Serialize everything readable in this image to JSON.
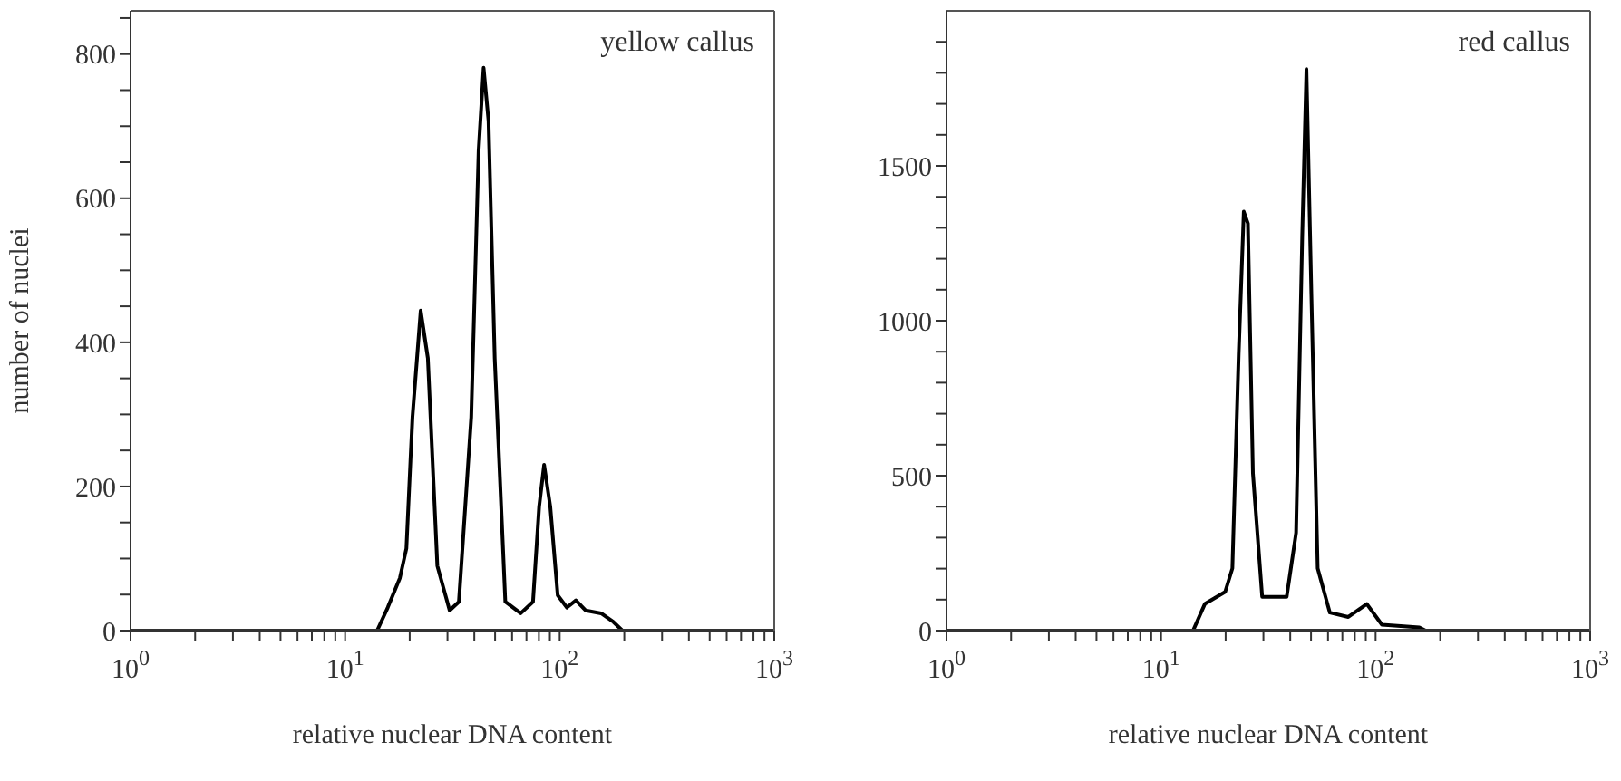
{
  "chart_data": [
    {
      "type": "line",
      "xlabel": "relative nuclear DNA content",
      "ylabel": "number of nuclei",
      "annotations": [
        "yellow callus"
      ],
      "log": "x",
      "marker": "none",
      "line_style": "solid",
      "xlim": [
        1,
        1000
      ],
      "xticks": [
        {
          "value": 1,
          "label": "10$^{0}$"
        },
        {
          "value": 2,
          "label": null
        },
        {
          "value": 3,
          "label": null
        },
        {
          "value": 4,
          "label": null
        },
        {
          "value": 5,
          "label": null
        },
        {
          "value": 6,
          "label": null
        },
        {
          "value": 7,
          "label": null
        },
        {
          "value": 8,
          "label": null
        },
        {
          "value": 9,
          "label": null
        },
        {
          "value": 10,
          "label": "10$^{1}$"
        },
        {
          "value": 20,
          "label": null
        },
        {
          "value": 30,
          "label": null
        },
        {
          "value": 40,
          "label": null
        },
        {
          "value": 50,
          "label": null
        },
        {
          "value": 60,
          "label": null
        },
        {
          "value": 70,
          "label": null
        },
        {
          "value": 80,
          "label": null
        },
        {
          "value": 90,
          "label": null
        },
        {
          "value": 100,
          "label": "10$^{2}$"
        },
        {
          "value": 200,
          "label": null
        },
        {
          "value": 300,
          "label": null
        },
        {
          "value": 400,
          "label": null
        },
        {
          "value": 500,
          "label": null
        },
        {
          "value": 600,
          "label": null
        },
        {
          "value": 700,
          "label": null
        },
        {
          "value": 800,
          "label": null
        },
        {
          "value": 900,
          "label": null
        },
        {
          "value": 1000,
          "label": "10$^{3}$"
        }
      ],
      "ylim": [
        0,
        860
      ],
      "yticks": [
        0,
        {
          "value": 50,
          "label": null
        },
        {
          "value": 100,
          "label": null
        },
        {
          "value": 150,
          "label": null
        },
        200,
        {
          "value": 250,
          "label": null
        },
        {
          "value": 300,
          "label": null
        },
        {
          "value": 350,
          "label": null
        },
        400,
        {
          "value": 450,
          "label": null
        },
        {
          "value": 500,
          "label": null
        },
        {
          "value": 550,
          "label": null
        },
        600,
        {
          "value": 650,
          "label": null
        },
        {
          "value": 700,
          "label": null
        },
        {
          "value": 750,
          "label": null
        },
        800,
        {
          "value": 850,
          "label": null
        }
      ],
      "series": [
        {
          "color": "#000000",
          "x": [
            1,
            14.1,
            15.8,
            18.0,
            19.3,
            20.6,
            22.5,
            24.3,
            26.9,
            30.7,
            33.9,
            38.7,
            41.9,
            44.2,
            46.6,
            49.8,
            55.8,
            65.8,
            75.1,
            80.2,
            84.6,
            90.4,
            97.9,
            108,
            119,
            132,
            156,
            178,
            196,
            1000
          ],
          "values": [
            0,
            0,
            32,
            73,
            114,
            296,
            444,
            378,
            90,
            28,
            40,
            296,
            666,
            781,
            707,
            378,
            40,
            24,
            40,
            172,
            230,
            172,
            49,
            32,
            42,
            28,
            24,
            12,
            0,
            0
          ]
        }
      ]
    },
    {
      "type": "line",
      "xlabel": "relative nuclear DNA content",
      "annotations": [
        "red callus"
      ],
      "log": "x",
      "marker": "none",
      "line_style": "solid",
      "xlim": [
        1,
        1000
      ],
      "xticks": [
        {
          "value": 1,
          "label": "10$^{0}$"
        },
        {
          "value": 2,
          "label": null
        },
        {
          "value": 3,
          "label": null
        },
        {
          "value": 4,
          "label": null
        },
        {
          "value": 5,
          "label": null
        },
        {
          "value": 6,
          "label": null
        },
        {
          "value": 7,
          "label": null
        },
        {
          "value": 8,
          "label": null
        },
        {
          "value": 9,
          "label": null
        },
        {
          "value": 10,
          "label": "10$^{1}$"
        },
        {
          "value": 20,
          "label": null
        },
        {
          "value": 30,
          "label": null
        },
        {
          "value": 40,
          "label": null
        },
        {
          "value": 50,
          "label": null
        },
        {
          "value": 60,
          "label": null
        },
        {
          "value": 70,
          "label": null
        },
        {
          "value": 80,
          "label": null
        },
        {
          "value": 90,
          "label": null
        },
        {
          "value": 100,
          "label": "10$^{2}$"
        },
        {
          "value": 200,
          "label": null
        },
        {
          "value": 300,
          "label": null
        },
        {
          "value": 400,
          "label": null
        },
        {
          "value": 500,
          "label": null
        },
        {
          "value": 600,
          "label": null
        },
        {
          "value": 700,
          "label": null
        },
        {
          "value": 800,
          "label": null
        },
        {
          "value": 900,
          "label": null
        },
        {
          "value": 1000,
          "label": "10$^{3}$"
        }
      ],
      "ylim": [
        0,
        2000
      ],
      "yticks": [
        0,
        {
          "value": 100,
          "label": null
        },
        {
          "value": 200,
          "label": null
        },
        {
          "value": 300,
          "label": null
        },
        {
          "value": 400,
          "label": null
        },
        500,
        {
          "value": 600,
          "label": null
        },
        {
          "value": 700,
          "label": null
        },
        {
          "value": 800,
          "label": null
        },
        {
          "value": 900,
          "label": null
        },
        1000,
        {
          "value": 1100,
          "label": null
        },
        {
          "value": 1200,
          "label": null
        },
        {
          "value": 1300,
          "label": null
        },
        {
          "value": 1400,
          "label": null
        },
        1500,
        {
          "value": 1600,
          "label": null
        },
        {
          "value": 1700,
          "label": null
        },
        {
          "value": 1800,
          "label": null
        },
        {
          "value": 1900,
          "label": null
        }
      ],
      "series": [
        {
          "color": "#000000",
          "x": [
            1,
            14.1,
            16.0,
            19.9,
            21.5,
            23.0,
            24.3,
            25.4,
            26.8,
            29.6,
            38.5,
            42.6,
            45.5,
            47.6,
            50.2,
            53.7,
            61.2,
            74.6,
            91.0,
            107,
            160,
            171,
            1000
          ],
          "values": [
            0,
            0,
            86,
            125,
            201,
            892,
            1352,
            1314,
            508,
            109,
            109,
            316,
            1275,
            1812,
            1083,
            201,
            58,
            44,
            86,
            19,
            10,
            0,
            0
          ]
        }
      ]
    }
  ]
}
